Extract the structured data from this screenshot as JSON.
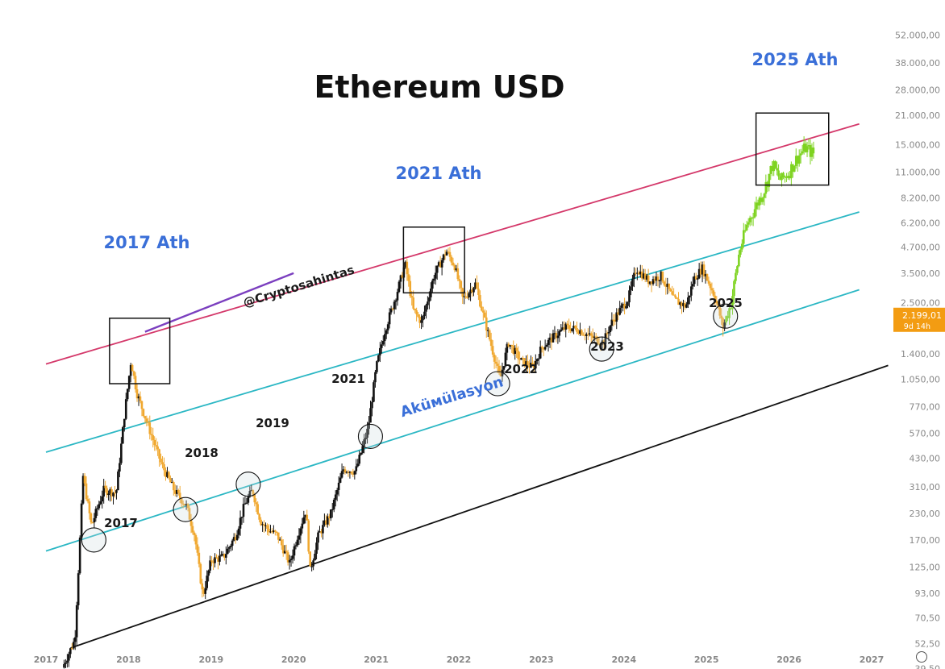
{
  "chart_data": {
    "type": "candlestick",
    "title": "Ethereum USD",
    "y_scale": "log",
    "ylim": [
      35,
      55000
    ],
    "xlim": [
      2017.0,
      2027.0
    ],
    "x_ticks": [
      "2017",
      "2018",
      "2019",
      "2020",
      "2021",
      "2022",
      "2023",
      "2024",
      "2025",
      "2026",
      "2027"
    ],
    "y_ticks": [
      {
        "label": "52.000,00",
        "value": 52000
      },
      {
        "label": "38.000,00",
        "value": 38000
      },
      {
        "label": "28.000,00",
        "value": 28000
      },
      {
        "label": "21.000,00",
        "value": 21000
      },
      {
        "label": "15.000,00",
        "value": 15000
      },
      {
        "label": "11.000,00",
        "value": 11000
      },
      {
        "label": "8.200,00",
        "value": 8200
      },
      {
        "label": "6.200,00",
        "value": 6200
      },
      {
        "label": "4.700,00",
        "value": 4700
      },
      {
        "label": "3.500,00",
        "value": 3500
      },
      {
        "label": "2.500,00",
        "value": 2500
      },
      {
        "label": "1.400,00",
        "value": 1400
      },
      {
        "label": "1.050,00",
        "value": 1050
      },
      {
        "label": "770,00",
        "value": 770
      },
      {
        "label": "570,00",
        "value": 570
      },
      {
        "label": "430,00",
        "value": 430
      },
      {
        "label": "310,00",
        "value": 310
      },
      {
        "label": "230,00",
        "value": 230
      },
      {
        "label": "170,00",
        "value": 170
      },
      {
        "label": "125,00",
        "value": 125
      },
      {
        "label": "93,00",
        "value": 93
      },
      {
        "label": "70,50",
        "value": 70.5
      },
      {
        "label": "52,50",
        "value": 52.5
      },
      {
        "label": "39,50",
        "value": 39.5
      }
    ],
    "current_price": {
      "label": "2.199,01",
      "sublabel": "9d 14h",
      "value": 2199.01
    },
    "price_path": [
      [
        2017.2,
        40
      ],
      [
        2017.35,
        55
      ],
      [
        2017.45,
        350
      ],
      [
        2017.55,
        200
      ],
      [
        2017.7,
        300
      ],
      [
        2017.85,
        290
      ],
      [
        2017.95,
        700
      ],
      [
        2018.03,
        1300
      ],
      [
        2018.1,
        900
      ],
      [
        2018.25,
        600
      ],
      [
        2018.4,
        400
      ],
      [
        2018.55,
        300
      ],
      [
        2018.7,
        250
      ],
      [
        2018.8,
        180
      ],
      [
        2018.9,
        90
      ],
      [
        2019.0,
        135
      ],
      [
        2019.15,
        140
      ],
      [
        2019.3,
        180
      ],
      [
        2019.4,
        250
      ],
      [
        2019.5,
        300
      ],
      [
        2019.6,
        210
      ],
      [
        2019.7,
        190
      ],
      [
        2019.8,
        180
      ],
      [
        2019.95,
        130
      ],
      [
        2020.05,
        180
      ],
      [
        2020.15,
        240
      ],
      [
        2020.2,
        120
      ],
      [
        2020.3,
        180
      ],
      [
        2020.45,
        230
      ],
      [
        2020.6,
        380
      ],
      [
        2020.75,
        370
      ],
      [
        2020.9,
        600
      ],
      [
        2021.0,
        1200
      ],
      [
        2021.1,
        1800
      ],
      [
        2021.25,
        2800
      ],
      [
        2021.35,
        3900
      ],
      [
        2021.45,
        2300
      ],
      [
        2021.55,
        2000
      ],
      [
        2021.7,
        3400
      ],
      [
        2021.85,
        4500
      ],
      [
        2021.95,
        3800
      ],
      [
        2022.05,
        2600
      ],
      [
        2022.2,
        3100
      ],
      [
        2022.35,
        1800
      ],
      [
        2022.5,
        1050
      ],
      [
        2022.6,
        1600
      ],
      [
        2022.75,
        1300
      ],
      [
        2022.9,
        1200
      ],
      [
        2023.0,
        1500
      ],
      [
        2023.15,
        1700
      ],
      [
        2023.3,
        1900
      ],
      [
        2023.45,
        1850
      ],
      [
        2023.6,
        1700
      ],
      [
        2023.75,
        1600
      ],
      [
        2023.85,
        2000
      ],
      [
        2023.95,
        2300
      ],
      [
        2024.05,
        2600
      ],
      [
        2024.15,
        3700
      ],
      [
        2024.3,
        3200
      ],
      [
        2024.45,
        3400
      ],
      [
        2024.6,
        2600
      ],
      [
        2024.75,
        2400
      ],
      [
        2024.85,
        3300
      ],
      [
        2024.95,
        3700
      ],
      [
        2025.1,
        2700
      ],
      [
        2025.2,
        1900
      ],
      [
        2025.3,
        2500
      ],
      [
        2025.4,
        4500
      ],
      [
        2025.5,
        6200
      ],
      [
        2025.6,
        7500
      ],
      [
        2025.7,
        9000
      ],
      [
        2025.8,
        12000
      ],
      [
        2025.9,
        10000
      ],
      [
        2026.0,
        11000
      ],
      [
        2026.1,
        13000
      ],
      [
        2026.2,
        14500
      ],
      [
        2026.3,
        13500
      ]
    ],
    "forecast_from": 2025.22,
    "channel_lines": [
      {
        "name": "upper",
        "color": "#d4386a",
        "points": [
          [
            2017.0,
            1250
          ],
          [
            2026.85,
            19000
          ]
        ]
      },
      {
        "name": "mid_upper",
        "color": "#2bb7c4",
        "points": [
          [
            2017.0,
            460
          ],
          [
            2026.85,
            7000
          ]
        ]
      },
      {
        "name": "mid_lower",
        "color": "#2bb7c4",
        "points": [
          [
            2017.0,
            150
          ],
          [
            2026.85,
            2900
          ]
        ]
      },
      {
        "name": "lower",
        "color": "#111111",
        "points": [
          [
            2017.3,
            50
          ],
          [
            2027.2,
            1230
          ]
        ]
      }
    ],
    "overlay_line": {
      "color": "#7b3fbf",
      "points": [
        [
          2018.2,
          1800
        ],
        [
          2020.0,
          3500
        ]
      ]
    },
    "annotations": {
      "title": "Ethereum USD",
      "ath_labels": [
        "2017 Ath",
        "2021 Ath",
        "2025 Ath"
      ],
      "year_labels": [
        "2017",
        "2018",
        "2019",
        "2021",
        "2022",
        "2023",
        "2025"
      ],
      "handle": "@Cryptosahintas",
      "accumulation": "Aküмülasyon"
    },
    "colors": {
      "bull": "#111111",
      "bear": "#f0a830",
      "forecast": "#7ed321",
      "price_tag": "#f39c12"
    }
  }
}
